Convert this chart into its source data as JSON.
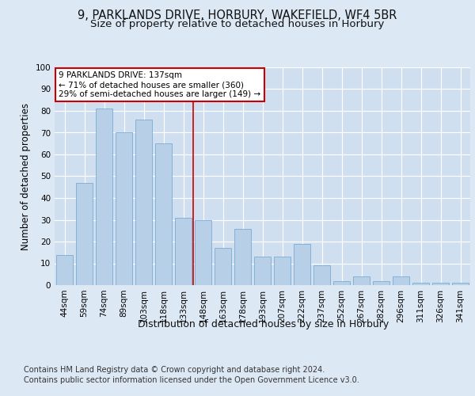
{
  "title_line1": "9, PARKLANDS DRIVE, HORBURY, WAKEFIELD, WF4 5BR",
  "title_line2": "Size of property relative to detached houses in Horbury",
  "xlabel": "Distribution of detached houses by size in Horbury",
  "ylabel": "Number of detached properties",
  "categories": [
    "44sqm",
    "59sqm",
    "74sqm",
    "89sqm",
    "103sqm",
    "118sqm",
    "133sqm",
    "148sqm",
    "163sqm",
    "178sqm",
    "193sqm",
    "207sqm",
    "222sqm",
    "237sqm",
    "252sqm",
    "267sqm",
    "282sqm",
    "296sqm",
    "311sqm",
    "326sqm",
    "341sqm"
  ],
  "values": [
    14,
    47,
    81,
    70,
    76,
    65,
    31,
    30,
    17,
    26,
    13,
    13,
    19,
    9,
    2,
    4,
    2,
    4,
    1,
    1,
    1
  ],
  "bar_color": "#b8cfe8",
  "bar_edge_color": "#7aadd4",
  "annotation_box_text": "9 PARKLANDS DRIVE: 137sqm\n← 71% of detached houses are smaller (360)\n29% of semi-detached houses are larger (149) →",
  "annotation_box_color": "#ffffff",
  "annotation_box_edge_color": "#cc0000",
  "vline_x": 6.5,
  "vline_color": "#cc0000",
  "background_color": "#dde8f5",
  "plot_bg_color": "#d0dfef",
  "grid_color": "#ffffff",
  "footer_line1": "Contains HM Land Registry data © Crown copyright and database right 2024.",
  "footer_line2": "Contains public sector information licensed under the Open Government Licence v3.0.",
  "ylim": [
    0,
    100
  ],
  "title_fontsize": 10.5,
  "subtitle_fontsize": 9.5,
  "tick_fontsize": 7.5,
  "ylabel_fontsize": 8.5,
  "xlabel_fontsize": 9,
  "annot_fontsize": 7.5,
  "footer_fontsize": 7
}
